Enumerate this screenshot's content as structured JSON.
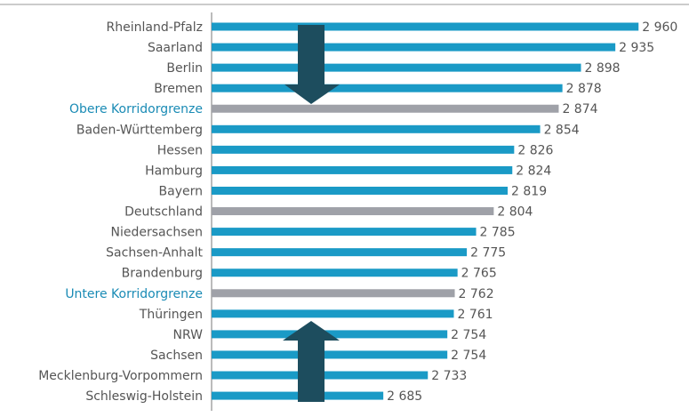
{
  "chart_data": {
    "type": "bar",
    "orientation": "horizontal",
    "categories": [
      "Rheinland-Pfalz",
      "Saarland",
      "Berlin",
      "Bremen",
      "Obere Korridorgrenze",
      "Baden-Württemberg",
      "Hessen",
      "Hamburg",
      "Bayern",
      "Deutschland",
      "Niedersachsen",
      "Sachsen-Anhalt",
      "Brandenburg",
      "Untere Korridorgrenze",
      "Thüringen",
      "NRW",
      "Sachsen",
      "Mecklenburg-Vorpommern",
      "Schleswig-Holstein"
    ],
    "values": [
      2960,
      2935,
      2898,
      2878,
      2874,
      2854,
      2826,
      2824,
      2819,
      2804,
      2785,
      2775,
      2765,
      2762,
      2761,
      2754,
      2754,
      2733,
      2685
    ],
    "value_labels": [
      "2 960",
      "2 935",
      "2 898",
      "2 878",
      "2 874",
      "2 854",
      "2 826",
      "2 824",
      "2 819",
      "2 804",
      "2 785",
      "2 775",
      "2 765",
      "2 762",
      "2 761",
      "2 754",
      "2 754",
      "2 733",
      "2 685"
    ],
    "colors": [
      "#1a9ac6",
      "#1a9ac6",
      "#1a9ac6",
      "#1a9ac6",
      "#9fa1a8",
      "#1a9ac6",
      "#1a9ac6",
      "#1a9ac6",
      "#1a9ac6",
      "#9fa1a8",
      "#1a9ac6",
      "#1a9ac6",
      "#1a9ac6",
      "#9fa1a8",
      "#1a9ac6",
      "#1a9ac6",
      "#1a9ac6",
      "#1a9ac6",
      "#1a9ac6"
    ],
    "label_colors": [
      "#555",
      "#555",
      "#555",
      "#555",
      "#1a8bb5",
      "#555",
      "#555",
      "#555",
      "#555",
      "#555",
      "#555",
      "#555",
      "#555",
      "#1a8bb5",
      "#555",
      "#555",
      "#555",
      "#555",
      "#555"
    ],
    "xlim": [
      2500,
      3000
    ]
  }
}
